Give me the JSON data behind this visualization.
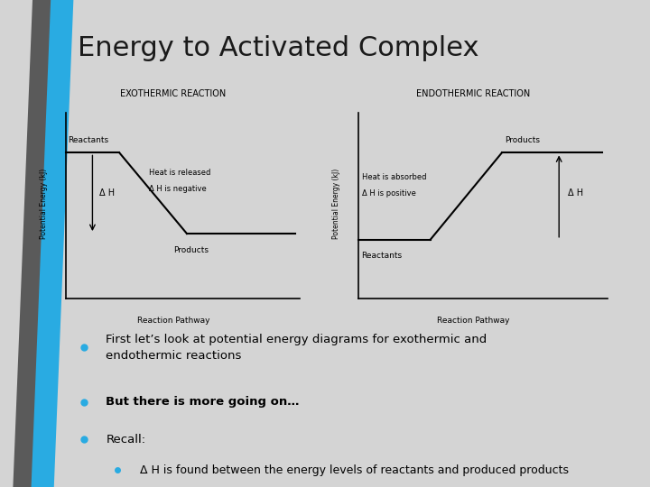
{
  "title": "Energy to Activated Complex",
  "background_color": "#d4d4d4",
  "title_bg": "#efefef",
  "title_color": "#1a1a1a",
  "title_fontsize": 22,
  "diagram_bg": "#ffffff",
  "exo_title": "EXOTHERMIC REACTION",
  "endo_title": "ENDOTHERMIC REACTION",
  "ylabel": "Potential Energy (kJ)",
  "xlabel": "Reaction Pathway",
  "exo_labels": {
    "reactants": "Reactants",
    "products": "Products",
    "heat": "Heat is released",
    "delta_h_label": "Δ H is negative",
    "arrow_label": "Δ H"
  },
  "endo_labels": {
    "reactants": "Reactants",
    "products": "Products",
    "heat": "Heat is absorbed",
    "delta_h_label": "Δ H is positive",
    "arrow_label": "Δ H"
  },
  "bullet1": "First let’s look at potential energy diagrams for exothermic and\nendothermic reactions",
  "bullet2": "But there is more going on…",
  "bullet3": "Recall:",
  "sub_bullet": "Δ H is found between the energy levels of reactants and produced products",
  "blue_color": "#29abe2",
  "gray_color": "#595959",
  "dark_gray": "#3f3f3f"
}
